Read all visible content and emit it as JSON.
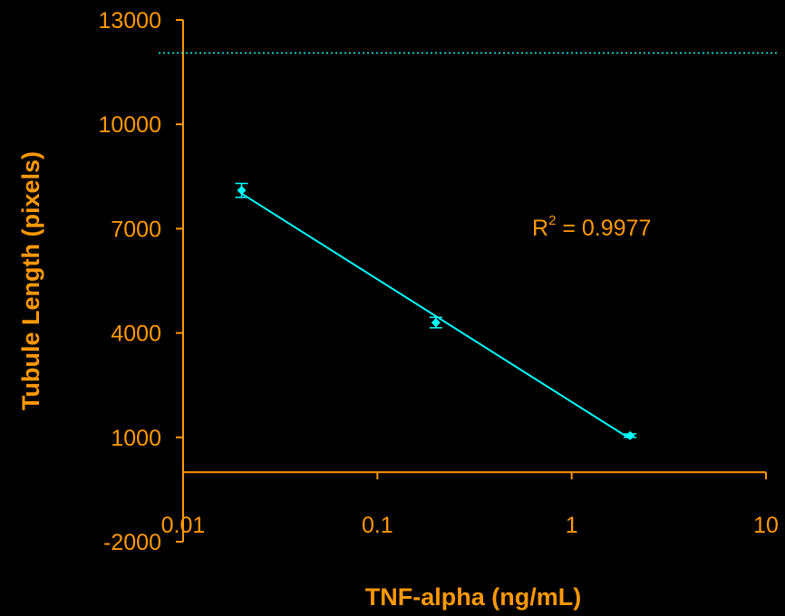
{
  "chart_data": {
    "type": "scatter",
    "title": "",
    "xlabel": "TNF-alpha (ng/mL)",
    "ylabel": "Tubule Length (pixels)",
    "xscale": "log",
    "xlim": [
      0.01,
      10
    ],
    "ylim": [
      -2000,
      13000
    ],
    "x_ticks": [
      0.01,
      0.1,
      1,
      10
    ],
    "x_tick_labels": [
      "0.01",
      "0.1",
      "1",
      "10"
    ],
    "y_ticks": [
      -2000,
      1000,
      4000,
      7000,
      10000,
      13000
    ],
    "y_tick_labels": [
      "-2000",
      "1000",
      "4000",
      "7000",
      "10000",
      "13000"
    ],
    "x_axis_crosses_y_at": 0,
    "series": [
      {
        "x": [
          0.02,
          0.2,
          2
        ],
        "y": [
          8100,
          4300,
          1050
        ],
        "error": [
          200,
          150,
          50
        ],
        "color": "#00FFFF",
        "trendline": "logarithmic"
      }
    ],
    "reference_line": {
      "y": 12050,
      "style": "dotted",
      "color": "#00FFFF"
    },
    "annotation": {
      "base": "R",
      "superscript": "2",
      "rest": " = 0.9977"
    },
    "colors": {
      "background": "#000000",
      "axis": "#FF9900",
      "text": "#FF9900",
      "data": "#00FFFF"
    },
    "grid": false,
    "legend": "none"
  }
}
